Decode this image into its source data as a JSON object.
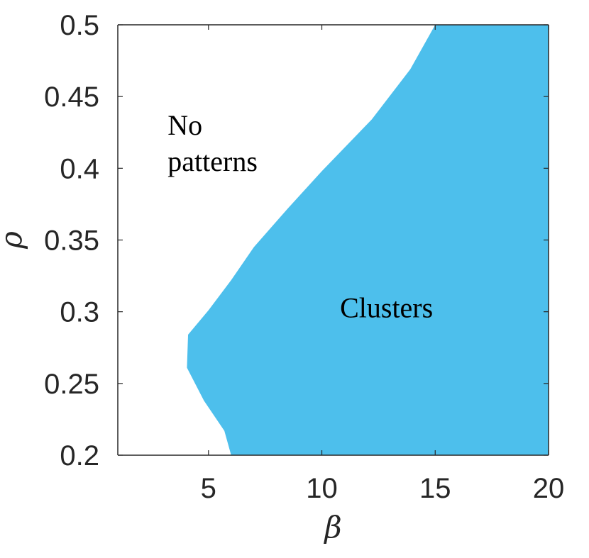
{
  "chart_data": {
    "type": "area",
    "title": "",
    "xlabel": "β",
    "ylabel": "ρ",
    "xlim": [
      1,
      20
    ],
    "ylim": [
      0.2,
      0.5
    ],
    "xticks": [
      5,
      10,
      15,
      20
    ],
    "yticks": [
      0.2,
      0.25,
      0.3,
      0.35,
      0.4,
      0.45,
      0.5
    ],
    "xtick_labels": [
      "5",
      "10",
      "15",
      "20"
    ],
    "ytick_labels": [
      "0.2",
      "0.25",
      "0.3",
      "0.35",
      "0.4",
      "0.45",
      "0.5"
    ],
    "grid": false,
    "fill_color": "#4dbfec",
    "regions": [
      {
        "label": "Clusters",
        "label_at": {
          "x": 10.8,
          "y": 0.303
        },
        "boundary": [
          {
            "x": 6.0,
            "y": 0.2
          },
          {
            "x": 5.7,
            "y": 0.217
          },
          {
            "x": 4.8,
            "y": 0.238
          },
          {
            "x": 4.05,
            "y": 0.261
          },
          {
            "x": 4.1,
            "y": 0.284
          },
          {
            "x": 5.0,
            "y": 0.301
          },
          {
            "x": 6.0,
            "y": 0.322
          },
          {
            "x": 7.0,
            "y": 0.345
          },
          {
            "x": 8.5,
            "y": 0.372
          },
          {
            "x": 10.0,
            "y": 0.398
          },
          {
            "x": 12.2,
            "y": 0.434
          },
          {
            "x": 13.9,
            "y": 0.469
          },
          {
            "x": 15.0,
            "y": 0.5
          }
        ]
      },
      {
        "label": "No\npatterns",
        "label_lines": [
          "No",
          "patterns"
        ],
        "label_at": {
          "x": 3.2,
          "y": 0.425
        }
      }
    ]
  }
}
